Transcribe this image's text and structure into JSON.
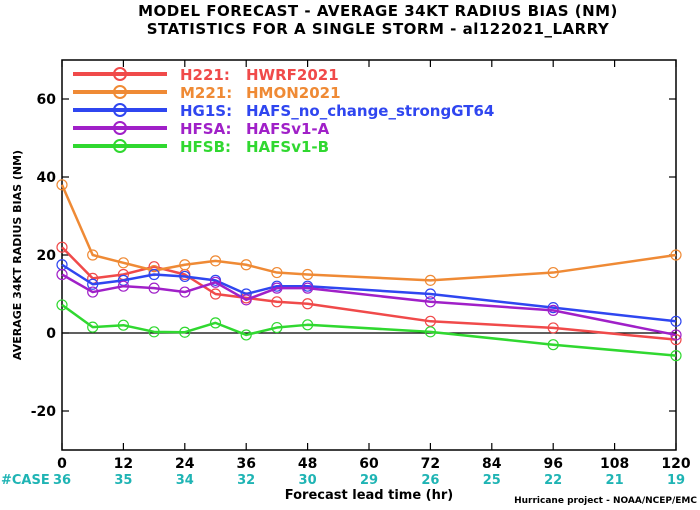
{
  "chart_data": {
    "type": "line",
    "title_line1": "MODEL FORECAST - AVERAGE 34KT RADIUS BIAS (NM)",
    "title_line2": "STATISTICS FOR A SINGLE STORM - al122021_LARRY",
    "xlabel": "Forecast lead time (hr)",
    "ylabel": "AVERAGE 34KT RADIUS BIAS (NM)",
    "xlim": [
      0,
      120
    ],
    "ylim": [
      -30,
      70
    ],
    "xticks": [
      0,
      12,
      24,
      36,
      48,
      60,
      72,
      84,
      96,
      108,
      120
    ],
    "yticks": [
      -20,
      0,
      20,
      40,
      60
    ],
    "case_label": "#CASE",
    "cases": [
      "36",
      "35",
      "34",
      "32",
      "30",
      "29",
      "26",
      "25",
      "22",
      "21",
      "19"
    ],
    "credit": "Hurricane project - NOAA/NCEP/EMC",
    "legend_position": "top-left",
    "zero_line": true,
    "series": [
      {
        "code": "H221:",
        "name": "HWRF2021",
        "color": "#f04a4a",
        "x": [
          0,
          6,
          12,
          18,
          24,
          30,
          36,
          42,
          48,
          72,
          96,
          120
        ],
        "y": [
          22,
          14,
          15,
          17,
          15,
          10,
          9,
          8,
          7.5,
          3,
          1.3,
          -1.7
        ]
      },
      {
        "code": "M221:",
        "name": "HMON2021",
        "color": "#ef8a35",
        "x": [
          0,
          6,
          12,
          18,
          24,
          30,
          36,
          42,
          48,
          72,
          96,
          120
        ],
        "y": [
          38,
          20,
          18,
          16,
          17.5,
          18.5,
          17.5,
          15.5,
          15,
          13.5,
          15.5,
          20
        ]
      },
      {
        "code": "HG1S:",
        "name": "HAFS_no_change_strongGT64",
        "color": "#2f46f0",
        "x": [
          0,
          6,
          12,
          18,
          24,
          30,
          36,
          42,
          48,
          72,
          96,
          120
        ],
        "y": [
          17.5,
          12.5,
          13.5,
          15,
          14.5,
          13.5,
          10,
          12,
          12,
          10,
          6.5,
          3
        ]
      },
      {
        "code": "HFSA:",
        "name": "HAFSv1-A",
        "color": "#a020c8",
        "x": [
          0,
          6,
          12,
          18,
          24,
          30,
          36,
          42,
          48,
          72,
          96,
          120
        ],
        "y": [
          15,
          10.5,
          12,
          11.5,
          10.5,
          13,
          8.5,
          11.5,
          11.5,
          8,
          5.8,
          -0.5
        ]
      },
      {
        "code": "HFSB:",
        "name": "HAFSv1-B",
        "color": "#30d830",
        "x": [
          0,
          6,
          12,
          18,
          24,
          30,
          36,
          42,
          48,
          72,
          96,
          120
        ],
        "y": [
          7.2,
          1.5,
          2,
          0.3,
          0.2,
          2.6,
          -0.5,
          1.4,
          2.1,
          0.3,
          -3,
          -5.8
        ]
      }
    ]
  }
}
